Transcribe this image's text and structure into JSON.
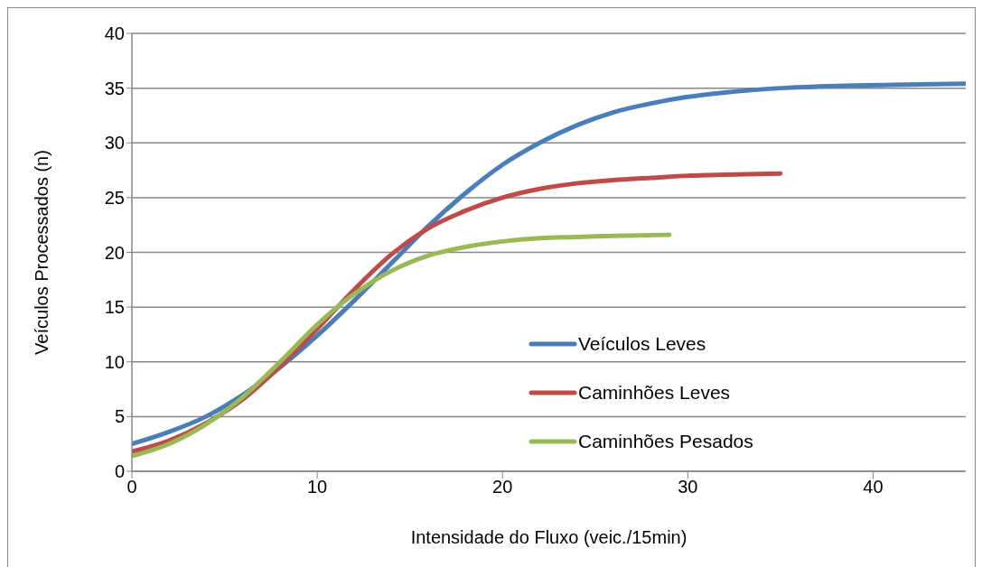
{
  "chart_data": {
    "type": "line",
    "xlabel": "Intensidade do Fluxo (veic./15min)",
    "ylabel": "Veículos Processados (n)",
    "xlim": [
      0,
      45
    ],
    "xticks": [
      0,
      10,
      20,
      30,
      40
    ],
    "ylim": [
      0,
      40
    ],
    "yticks": [
      0,
      5,
      10,
      15,
      20,
      25,
      30,
      35,
      40
    ],
    "grid": "y",
    "legend": "bottom right",
    "marker": "none",
    "line_style": "solid",
    "series": [
      {
        "name": "Veículos Leves",
        "color": "#4a7ebb",
        "x": [
          0,
          2,
          4,
          6,
          8,
          10,
          12,
          14,
          16,
          18,
          20,
          22,
          24,
          26,
          28,
          30,
          32,
          35,
          38,
          41,
          45
        ],
        "values": [
          2.5,
          3.6,
          5.0,
          7.0,
          9.5,
          12.4,
          15.6,
          19.0,
          22.4,
          25.4,
          28.0,
          30.0,
          31.6,
          32.8,
          33.6,
          34.2,
          34.6,
          35.0,
          35.2,
          35.3,
          35.4
        ]
      },
      {
        "name": "Caminhões Leves",
        "color": "#be4b48",
        "x": [
          0,
          2,
          4,
          6,
          8,
          10,
          12,
          14,
          16,
          18,
          20,
          22,
          24,
          26,
          28,
          30,
          32,
          35
        ],
        "values": [
          1.8,
          2.8,
          4.4,
          6.6,
          9.6,
          13.0,
          16.6,
          19.8,
          22.2,
          23.8,
          25.0,
          25.8,
          26.3,
          26.6,
          26.8,
          27.0,
          27.1,
          27.2
        ]
      },
      {
        "name": "Caminhões Pesados",
        "color": "#98b954",
        "x": [
          0,
          2,
          4,
          6,
          8,
          10,
          12,
          14,
          16,
          18,
          20,
          22,
          24,
          26,
          29
        ],
        "values": [
          1.4,
          2.5,
          4.3,
          6.8,
          10.0,
          13.4,
          16.2,
          18.3,
          19.7,
          20.5,
          21.0,
          21.3,
          21.4,
          21.5,
          21.6
        ]
      }
    ]
  }
}
